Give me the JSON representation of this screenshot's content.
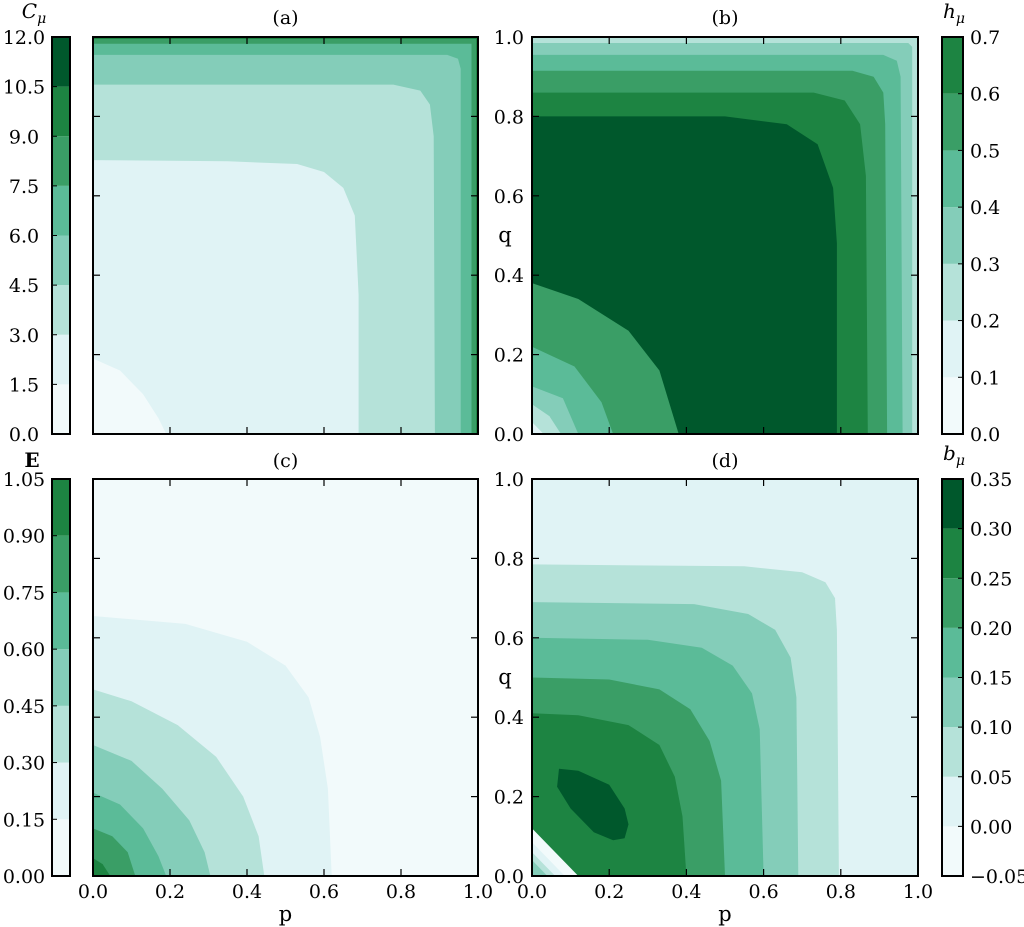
{
  "colors": {
    "levels": [
      "#f2fafb",
      "#e0f3f5",
      "#b5e2d9",
      "#84cdb9",
      "#5bbb98",
      "#3a9e66",
      "#1d8442",
      "#00582c"
    ]
  },
  "chart_data": [
    {
      "id": "a",
      "type": "heatmap",
      "subtype": "filled-contour",
      "title": "(a)",
      "xlabel": "",
      "ylabel": "",
      "xlim": [
        0,
        1
      ],
      "ylim": [
        0,
        1
      ],
      "colorbar": {
        "label": "C_μ",
        "label_main": "C",
        "label_sub": "μ",
        "side": "left",
        "levels": [
          0.0,
          1.5,
          3.0,
          4.5,
          6.0,
          7.5,
          9.0,
          10.5,
          12.0
        ],
        "tick_labels": [
          "0.0",
          "1.5",
          "3.0",
          "4.5",
          "6.0",
          "7.5",
          "9.0",
          "10.5",
          "12.0"
        ]
      },
      "contour_boundaries": [
        {
          "from": "0.0–1.5",
          "to": "1.5–3.0",
          "points": [
            [
              0.0,
              0.19
            ],
            [
              0.07,
              0.16
            ],
            [
              0.13,
              0.1
            ],
            [
              0.17,
              0.04
            ],
            [
              0.19,
              0.0
            ]
          ]
        },
        {
          "from": "1.5–3.0",
          "to": "3.0–4.5",
          "points": [
            [
              0.0,
              0.69
            ],
            [
              0.35,
              0.687
            ],
            [
              0.53,
              0.68
            ],
            [
              0.6,
              0.66
            ],
            [
              0.65,
              0.62
            ],
            [
              0.68,
              0.55
            ],
            [
              0.69,
              0.35
            ],
            [
              0.69,
              0.0
            ]
          ]
        },
        {
          "from": "3.0–4.5",
          "to": "4.5–6.0",
          "points": [
            [
              0.0,
              0.88
            ],
            [
              0.78,
              0.88
            ],
            [
              0.85,
              0.865
            ],
            [
              0.875,
              0.83
            ],
            [
              0.885,
              0.75
            ],
            [
              0.888,
              0.0
            ]
          ]
        },
        {
          "from": "4.5–6.0",
          "to": "6.0–7.5",
          "points": [
            [
              0.0,
              0.955
            ],
            [
              0.92,
              0.955
            ],
            [
              0.948,
              0.945
            ],
            [
              0.955,
              0.92
            ],
            [
              0.955,
              0.0
            ]
          ]
        },
        {
          "from": "6.0–7.5",
          "to": "7.5–9.0",
          "points": [
            [
              0.0,
              0.983
            ],
            [
              0.983,
              0.983
            ],
            [
              0.983,
              0.0
            ]
          ]
        },
        {
          "from": "7.5–9.0",
          "to": "9.0+",
          "points": [
            [
              0.0,
              0.995
            ],
            [
              0.995,
              0.995
            ],
            [
              0.995,
              0.0
            ]
          ]
        }
      ]
    },
    {
      "id": "b",
      "type": "heatmap",
      "subtype": "filled-contour",
      "title": "(b)",
      "xlabel": "",
      "ylabel": "q",
      "xlim": [
        0,
        1
      ],
      "ylim": [
        0,
        1
      ],
      "colorbar": {
        "label": "h_μ",
        "label_main": "h",
        "label_sub": "μ",
        "side": "right",
        "levels": [
          0.0,
          0.1,
          0.2,
          0.3,
          0.4,
          0.5,
          0.6,
          0.7
        ],
        "tick_labels": [
          "0.0",
          "0.1",
          "0.2",
          "0.3",
          "0.4",
          "0.5",
          "0.6",
          "0.7"
        ]
      },
      "contour_boundaries": [
        {
          "from": "0.0–0.1",
          "to": "0.1–0.2",
          "points": [
            [
              0.0,
              0.03
            ],
            [
              0.03,
              0.0
            ]
          ]
        },
        {
          "from": "0.1–0.2",
          "to": "0.2–0.3",
          "points": [
            [
              0.0,
              0.075
            ],
            [
              0.045,
              0.045
            ],
            [
              0.075,
              0.0
            ]
          ]
        },
        {
          "from": "0.2–0.3",
          "to": "0.3–0.4",
          "points": [
            [
              0.0,
              0.12
            ],
            [
              0.08,
              0.09
            ],
            [
              0.12,
              0.0
            ]
          ]
        },
        {
          "from": "0.3–0.4",
          "to": "0.4–0.5",
          "points": [
            [
              0.0,
              0.22
            ],
            [
              0.11,
              0.17
            ],
            [
              0.18,
              0.08
            ],
            [
              0.21,
              0.0
            ]
          ]
        },
        {
          "from": "0.4–0.5",
          "to": "0.5–0.6",
          "points": [
            [
              0.0,
              0.38
            ],
            [
              0.12,
              0.34
            ],
            [
              0.25,
              0.26
            ],
            [
              0.33,
              0.16
            ],
            [
              0.38,
              0.0
            ]
          ]
        },
        {
          "from": "0.5–0.6",
          "to": "0.6–0.7",
          "points": [
            [
              0.0,
              0.8
            ],
            [
              0.5,
              0.8
            ],
            [
              0.66,
              0.78
            ],
            [
              0.74,
              0.73
            ],
            [
              0.78,
              0.62
            ],
            [
              0.79,
              0.48
            ],
            [
              0.79,
              0.0
            ]
          ]
        },
        {
          "from": "0.6–0.7",
          "to": "0.7–0.8",
          "points": [
            [
              0.0,
              0.86
            ],
            [
              0.73,
              0.86
            ],
            [
              0.81,
              0.84
            ],
            [
              0.85,
              0.78
            ],
            [
              0.865,
              0.65
            ],
            [
              0.87,
              0.0
            ]
          ]
        },
        {
          "from": "0.7–0.8",
          "to": "0.8–0.9",
          "points": [
            [
              0.0,
              0.915
            ],
            [
              0.83,
              0.915
            ],
            [
              0.885,
              0.9
            ],
            [
              0.91,
              0.86
            ],
            [
              0.915,
              0.78
            ],
            [
              0.92,
              0.0
            ]
          ]
        },
        {
          "from": "0.8–0.9",
          "to": "0.9–1.0",
          "points": [
            [
              0.0,
              0.955
            ],
            [
              0.91,
              0.955
            ],
            [
              0.945,
              0.94
            ],
            [
              0.955,
              0.9
            ],
            [
              0.96,
              0.0
            ]
          ]
        },
        {
          "from": "0.9–1.0",
          "to": "1.0+",
          "points": [
            [
              0.0,
              0.985
            ],
            [
              0.975,
              0.985
            ],
            [
              0.985,
              0.975
            ],
            [
              0.985,
              0.0
            ]
          ]
        }
      ]
    },
    {
      "id": "c",
      "type": "heatmap",
      "subtype": "filled-contour",
      "title": "(c)",
      "xlabel": "p",
      "ylabel": "",
      "xlim": [
        0,
        1
      ],
      "ylim": [
        0,
        1
      ],
      "colorbar": {
        "label": "E",
        "label_main": "E",
        "label_sub": "",
        "side": "left",
        "levels": [
          0.0,
          0.15,
          0.3,
          0.45,
          0.6,
          0.75,
          0.9,
          1.05
        ],
        "tick_labels": [
          "0.00",
          "0.15",
          "0.30",
          "0.45",
          "0.60",
          "0.75",
          "0.90",
          "1.05"
        ]
      },
      "contour_boundaries": [
        {
          "from": "0.00–0.15",
          "to": "0.15–0.30",
          "points": [
            [
              0.0,
              0.655
            ],
            [
              0.24,
              0.635
            ],
            [
              0.4,
              0.59
            ],
            [
              0.5,
              0.53
            ],
            [
              0.56,
              0.45
            ],
            [
              0.59,
              0.35
            ],
            [
              0.61,
              0.22
            ],
            [
              0.62,
              0.0
            ]
          ]
        },
        {
          "from": "0.15–0.30",
          "to": "0.30–0.45",
          "points": [
            [
              0.0,
              0.47
            ],
            [
              0.1,
              0.44
            ],
            [
              0.22,
              0.38
            ],
            [
              0.32,
              0.3
            ],
            [
              0.39,
              0.2
            ],
            [
              0.43,
              0.1
            ],
            [
              0.445,
              0.0
            ]
          ]
        },
        {
          "from": "0.30–0.45",
          "to": "0.45–0.60",
          "points": [
            [
              0.0,
              0.33
            ],
            [
              0.1,
              0.29
            ],
            [
              0.18,
              0.22
            ],
            [
              0.25,
              0.14
            ],
            [
              0.29,
              0.06
            ],
            [
              0.305,
              0.0
            ]
          ]
        },
        {
          "from": "0.45–0.60",
          "to": "0.60–0.75",
          "points": [
            [
              0.0,
              0.21
            ],
            [
              0.07,
              0.18
            ],
            [
              0.13,
              0.12
            ],
            [
              0.17,
              0.05
            ],
            [
              0.19,
              0.0
            ]
          ]
        },
        {
          "from": "0.60–0.75",
          "to": "0.75–0.90",
          "points": [
            [
              0.0,
              0.12
            ],
            [
              0.05,
              0.1
            ],
            [
              0.09,
              0.06
            ],
            [
              0.11,
              0.0
            ]
          ]
        },
        {
          "from": "0.75–0.90",
          "to": "0.90–1.05",
          "points": [
            [
              0.0,
              0.045
            ],
            [
              0.025,
              0.03
            ],
            [
              0.045,
              0.0
            ]
          ]
        }
      ]
    },
    {
      "id": "d",
      "type": "heatmap",
      "subtype": "filled-contour",
      "title": "(d)",
      "xlabel": "p",
      "ylabel": "q",
      "xlim": [
        0,
        1
      ],
      "ylim": [
        0,
        1
      ],
      "colorbar": {
        "label": "b_μ",
        "label_main": "b",
        "label_sub": "μ",
        "side": "right",
        "levels": [
          -0.05,
          0.0,
          0.05,
          0.1,
          0.15,
          0.2,
          0.25,
          0.3,
          0.35
        ],
        "tick_labels": [
          "−0.05",
          "0.00",
          "0.05",
          "0.10",
          "0.15",
          "0.20",
          "0.25",
          "0.30",
          "0.35"
        ]
      },
      "contour_boundaries": [
        {
          "from": "0.00–0.05",
          "to": "0.05–0.10",
          "points": [
            [
              0.0,
              0.785
            ],
            [
              0.55,
              0.78
            ],
            [
              0.7,
              0.765
            ],
            [
              0.76,
              0.74
            ],
            [
              0.785,
              0.7
            ],
            [
              0.79,
              0.62
            ],
            [
              0.795,
              0.0
            ]
          ]
        },
        {
          "from": "0.05–0.10",
          "to": "0.10–0.15",
          "points": [
            [
              0.0,
              0.69
            ],
            [
              0.42,
              0.685
            ],
            [
              0.56,
              0.66
            ],
            [
              0.63,
              0.62
            ],
            [
              0.67,
              0.55
            ],
            [
              0.685,
              0.45
            ],
            [
              0.69,
              0.0
            ]
          ]
        },
        {
          "from": "0.10–0.15",
          "to": "0.15–0.20",
          "points": [
            [
              0.0,
              0.6
            ],
            [
              0.3,
              0.595
            ],
            [
              0.44,
              0.575
            ],
            [
              0.52,
              0.53
            ],
            [
              0.57,
              0.46
            ],
            [
              0.59,
              0.37
            ],
            [
              0.6,
              0.0
            ]
          ]
        },
        {
          "from": "0.15–0.20",
          "to": "0.20–0.25",
          "points": [
            [
              0.0,
              0.5
            ],
            [
              0.2,
              0.495
            ],
            [
              0.33,
              0.47
            ],
            [
              0.41,
              0.42
            ],
            [
              0.46,
              0.34
            ],
            [
              0.49,
              0.24
            ],
            [
              0.5,
              0.0
            ]
          ]
        },
        {
          "from": "0.20–0.25",
          "to": "0.25–0.30",
          "points": [
            [
              0.0,
              0.41
            ],
            [
              0.12,
              0.405
            ],
            [
              0.25,
              0.38
            ],
            [
              0.33,
              0.33
            ],
            [
              0.37,
              0.25
            ],
            [
              0.39,
              0.15
            ],
            [
              0.4,
              0.0
            ]
          ]
        },
        {
          "from": "0.25–0.30",
          "to": "0.30–0.35",
          "points": [
            [
              0.07,
              0.27
            ],
            [
              0.12,
              0.265
            ],
            [
              0.2,
              0.23
            ],
            [
              0.24,
              0.17
            ],
            [
              0.25,
              0.13
            ],
            [
              0.24,
              0.095
            ],
            [
              0.21,
              0.09
            ],
            [
              0.16,
              0.11
            ],
            [
              0.1,
              0.17
            ],
            [
              0.065,
              0.225
            ]
          ],
          "closed": true
        },
        {
          "from": "0.00–0.05",
          "to": "0.05–0.10 (corner)",
          "points": [
            [
              0.0,
              0.04
            ],
            [
              0.04,
              0.0
            ]
          ]
        },
        {
          "from": "0.05–0.10",
          "to": "0.10–0.15 (corner)",
          "points": [
            [
              0.0,
              0.06
            ],
            [
              0.06,
              0.0
            ]
          ]
        },
        {
          "from": "0.10–0.15",
          "to": "0.15–0.20 (corner)",
          "points": [
            [
              0.0,
              0.085
            ],
            [
              0.085,
              0.0
            ]
          ]
        },
        {
          "from": "0.15–0.20",
          "to": "0.20–0.25 (corner)",
          "points": [
            [
              0.0,
              0.12
            ],
            [
              0.12,
              0.0
            ]
          ]
        }
      ]
    }
  ]
}
